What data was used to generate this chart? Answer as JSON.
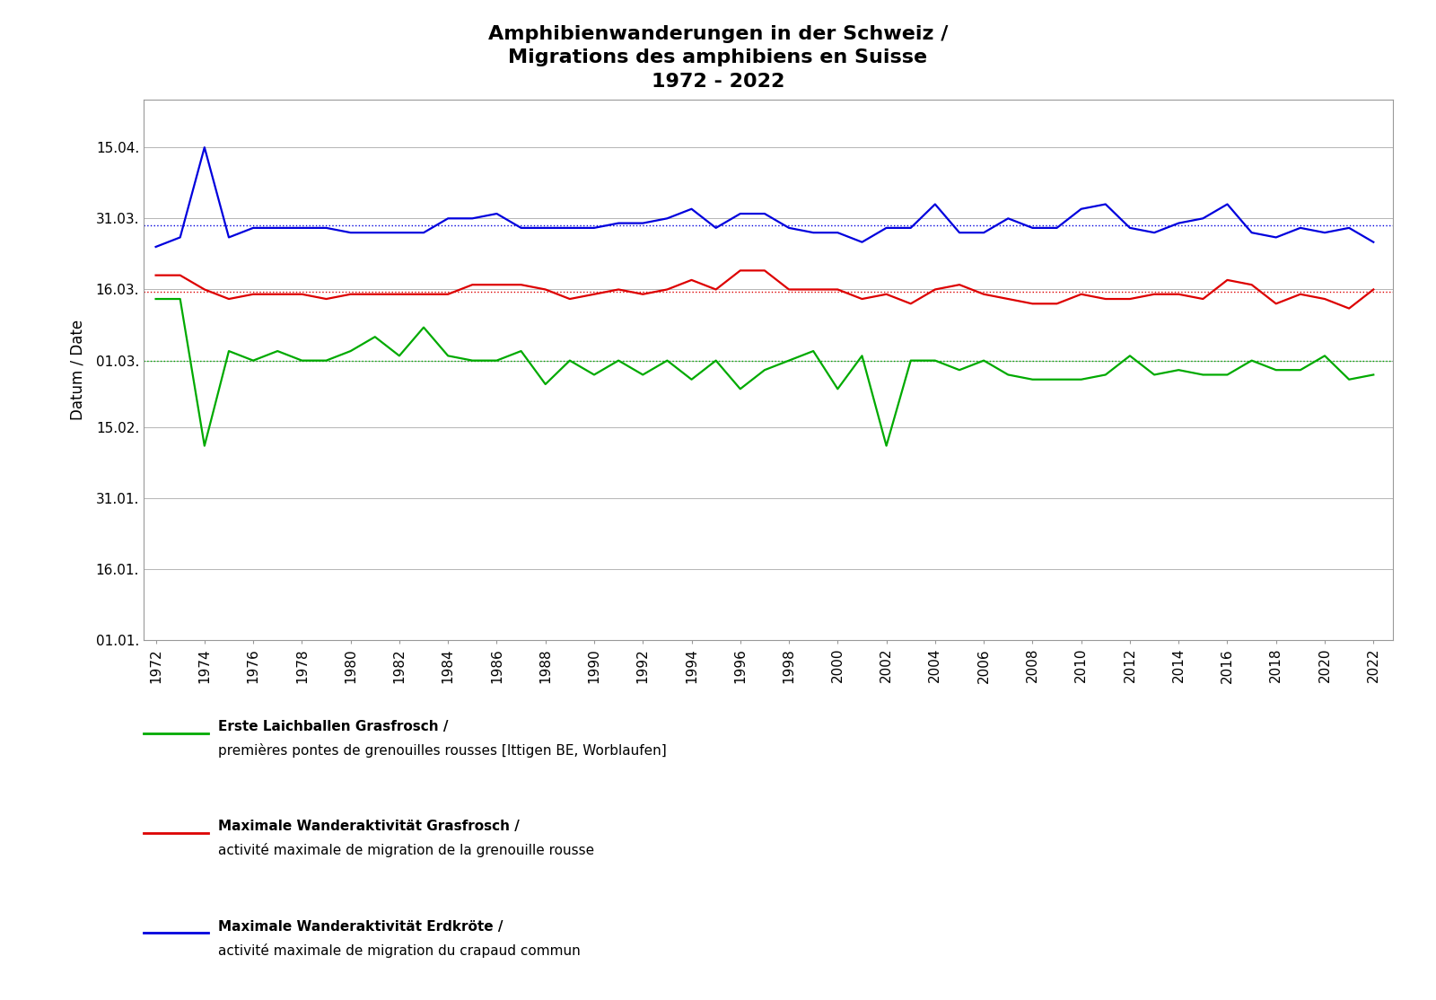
{
  "title_line1": "Amphibienwanderungen in der Schweiz /",
  "title_line2": "Migrations des amphibiens en Suisse",
  "title_line3": "1972 - 2022",
  "ylabel": "Datum / Date",
  "background_color": "#ffffff",
  "years": [
    1972,
    1973,
    1974,
    1975,
    1976,
    1977,
    1978,
    1979,
    1980,
    1981,
    1982,
    1983,
    1984,
    1985,
    1986,
    1987,
    1988,
    1989,
    1990,
    1991,
    1992,
    1993,
    1994,
    1995,
    1996,
    1997,
    1998,
    1999,
    2000,
    2001,
    2002,
    2003,
    2004,
    2005,
    2006,
    2007,
    2008,
    2009,
    2010,
    2011,
    2012,
    2013,
    2014,
    2015,
    2016,
    2017,
    2018,
    2019,
    2020,
    2021,
    2022
  ],
  "green_data": [
    73,
    73,
    42,
    62,
    60,
    62,
    60,
    60,
    62,
    65,
    61,
    67,
    61,
    60,
    60,
    62,
    55,
    60,
    57,
    60,
    57,
    60,
    56,
    60,
    54,
    58,
    60,
    62,
    54,
    61,
    42,
    60,
    60,
    58,
    60,
    57,
    56,
    56,
    56,
    57,
    61,
    57,
    58,
    57,
    57,
    60,
    58,
    58,
    61,
    56,
    57
  ],
  "red_data": [
    78,
    78,
    75,
    73,
    74,
    74,
    74,
    73,
    74,
    74,
    74,
    74,
    74,
    76,
    76,
    76,
    75,
    73,
    74,
    75,
    74,
    75,
    77,
    75,
    79,
    79,
    75,
    75,
    75,
    73,
    74,
    72,
    75,
    76,
    74,
    73,
    72,
    72,
    74,
    73,
    73,
    74,
    74,
    73,
    77,
    76,
    72,
    74,
    73,
    71,
    75
  ],
  "blue_data": [
    84,
    86,
    105,
    86,
    88,
    88,
    88,
    88,
    87,
    87,
    87,
    87,
    90,
    90,
    91,
    88,
    88,
    88,
    88,
    89,
    89,
    90,
    92,
    88,
    91,
    91,
    88,
    87,
    87,
    85,
    88,
    88,
    93,
    87,
    87,
    90,
    88,
    88,
    92,
    93,
    88,
    87,
    89,
    90,
    93,
    87,
    86,
    88,
    87,
    88,
    85
  ],
  "green_color": "#00aa00",
  "red_color": "#dd0000",
  "blue_color": "#0000dd",
  "green_trend": 60.0,
  "red_trend": 74.5,
  "blue_trend": 88.5,
  "yticks_days": [
    1,
    16,
    31,
    46,
    60,
    75,
    90,
    105
  ],
  "ytick_labels": [
    "01.01.",
    "16.01.",
    "31.01.",
    "15.02.",
    "01.03.",
    "16.03.",
    "31.03.",
    "15.04."
  ],
  "ymin": 1,
  "ymax": 115,
  "xticks": [
    1972,
    1974,
    1976,
    1978,
    1980,
    1982,
    1984,
    1986,
    1988,
    1990,
    1992,
    1994,
    1996,
    1998,
    2000,
    2002,
    2004,
    2006,
    2008,
    2010,
    2012,
    2014,
    2016,
    2018,
    2020,
    2022
  ],
  "xmin": 1971.5,
  "xmax": 2022.8,
  "legend_green_1": "Erste Laichballen Grasfrosch /",
  "legend_green_2": "premières pontes de grenouilles rousses [Ittigen BE, Worblaufen]",
  "legend_red_1": "Maximale Wanderaktivität Grasfrosch /",
  "legend_red_2": "activité maximale de migration de la grenouille rousse",
  "legend_blue_1": "Maximale Wanderaktivität Erdkröte /",
  "legend_blue_2": "activité maximale de migration du crapaud commun"
}
